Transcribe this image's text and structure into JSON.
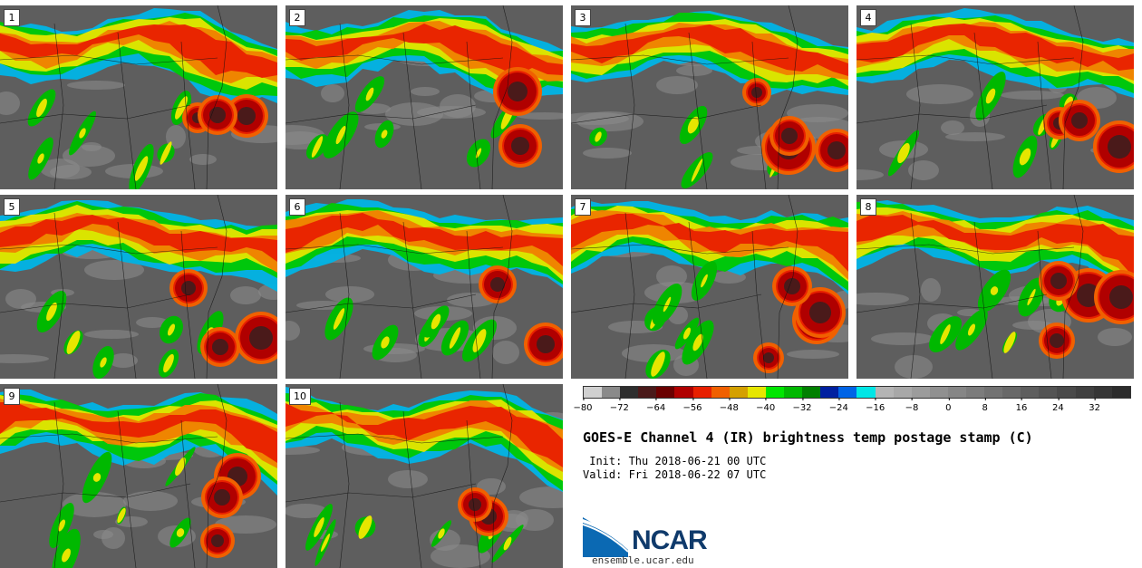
{
  "panels": [
    {
      "label": "1"
    },
    {
      "label": "2"
    },
    {
      "label": "3"
    },
    {
      "label": "4"
    },
    {
      "label": "5"
    },
    {
      "label": "6"
    },
    {
      "label": "7"
    },
    {
      "label": "8"
    },
    {
      "label": "9"
    },
    {
      "label": "10"
    }
  ],
  "colorbar": {
    "colors": [
      "#d0d0d0",
      "#8a8a8a",
      "#2e2e2e",
      "#4a1a1a",
      "#6a0000",
      "#b00000",
      "#e82000",
      "#f06000",
      "#d4a000",
      "#e6e600",
      "#00e600",
      "#00b800",
      "#008000",
      "#0020a0",
      "#0064e6",
      "#00e6e6",
      "#b4b4b4",
      "#a8a8a8",
      "#9c9c9c",
      "#909090",
      "#868686",
      "#7c7c7c",
      "#727272",
      "#686868",
      "#5e5e5e",
      "#545454",
      "#4a4a4a",
      "#404040",
      "#363636",
      "#2c2c2c"
    ],
    "min": -80,
    "max": 40,
    "ticks": [
      "−80",
      "−72",
      "−64",
      "−56",
      "−48",
      "−40",
      "−32",
      "−24",
      "−16",
      "−8",
      "0",
      "8",
      "16",
      "24",
      "32"
    ]
  },
  "title": "GOES-E Channel 4 (IR) brightness temp postage stamp (C)",
  "init": " Init: Thu 2018-06-21 00 UTC",
  "valid": "Valid: Fri 2018-06-22 07 UTC",
  "logo": {
    "text": "NCAR",
    "site": "ensemble.ucar.edu",
    "color": "#0f3a6b",
    "accent": "#1e6fb8"
  }
}
